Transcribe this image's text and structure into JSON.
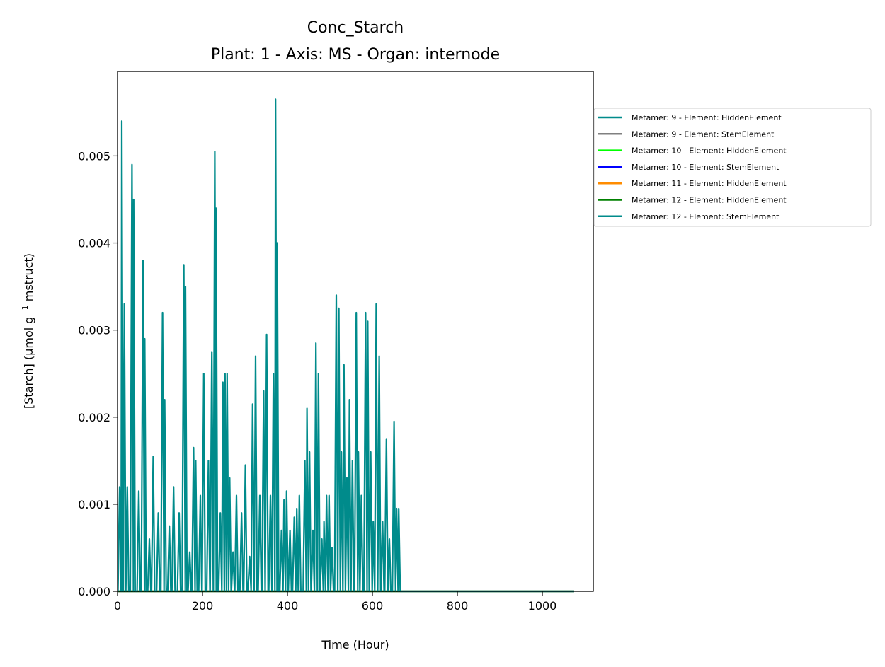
{
  "chart_data": {
    "type": "line",
    "title": "Conc_Starch",
    "subtitle": "Plant: 1 - Axis: MS - Organ: internode",
    "xlabel": "Time (Hour)",
    "ylabel_main": "[Starch] (µmol g",
    "ylabel_exp": "−1",
    "ylabel_tail": " mstruct)",
    "xlim": [
      0,
      1120
    ],
    "ylim": [
      0,
      0.00597
    ],
    "xticks": [
      0,
      200,
      400,
      600,
      800,
      1000
    ],
    "xtick_labels": [
      "0",
      "200",
      "400",
      "600",
      "800",
      "1000"
    ],
    "yticks": [
      0,
      0.001,
      0.002,
      0.003,
      0.004,
      0.005
    ],
    "ytick_labels": [
      "0.000",
      "0.001",
      "0.002",
      "0.003",
      "0.004",
      "0.005"
    ],
    "grid": false,
    "legend_position": "outside-right",
    "series": [
      {
        "name": "Metamer: 9 - Element: HiddenElement",
        "color": "#008B8B",
        "x": [
          0,
          1075
        ],
        "y": [
          0,
          0
        ]
      },
      {
        "name": "Metamer: 9 - Element: StemElement",
        "color": "#808080",
        "x": [
          0,
          1075
        ],
        "y": [
          0,
          0
        ]
      },
      {
        "name": "Metamer: 10 - Element: HiddenElement",
        "color": "#00FF00",
        "x": [
          0,
          1075
        ],
        "y": [
          0,
          0
        ]
      },
      {
        "name": "Metamer: 10 - Element: StemElement",
        "color": "#0000FF",
        "x": [
          0,
          1075
        ],
        "y": [
          0,
          0
        ]
      },
      {
        "name": "Metamer: 11 - Element: HiddenElement",
        "color": "#FF8C00",
        "x": [
          0,
          1075
        ],
        "y": [
          0,
          0
        ]
      },
      {
        "name": "Metamer: 12 - Element: HiddenElement",
        "color": "#008000",
        "x": [
          0,
          1075
        ],
        "y": [
          0,
          0
        ]
      },
      {
        "name": "Metamer: 12 - Element: StemElement",
        "color": "#008B8B",
        "peaks": [
          [
            5,
            0.0012
          ],
          [
            10,
            0.0054
          ],
          [
            16,
            0.0033
          ],
          [
            23,
            0.0012
          ],
          [
            34,
            0.0049
          ],
          [
            38,
            0.0045
          ],
          [
            50,
            0.00115
          ],
          [
            60,
            0.0038
          ],
          [
            64,
            0.0029
          ],
          [
            75,
            0.0006
          ],
          [
            84,
            0.00155
          ],
          [
            96,
            0.0009
          ],
          [
            106,
            0.0032
          ],
          [
            111,
            0.0022
          ],
          [
            122,
            0.00075
          ],
          [
            132,
            0.0012
          ],
          [
            145,
            0.0009
          ],
          [
            156,
            0.00375
          ],
          [
            160,
            0.0035
          ],
          [
            170,
            0.00045
          ],
          [
            179,
            0.00165
          ],
          [
            184,
            0.0015
          ],
          [
            195,
            0.0011
          ],
          [
            203,
            0.0025
          ],
          [
            214,
            0.0015
          ],
          [
            222,
            0.00275
          ],
          [
            229,
            0.00505
          ],
          [
            232,
            0.0044
          ],
          [
            242,
            0.0009
          ],
          [
            248,
            0.0024
          ],
          [
            253,
            0.0025
          ],
          [
            258,
            0.0025
          ],
          [
            264,
            0.0013
          ],
          [
            272,
            0.00045
          ],
          [
            280,
            0.0011
          ],
          [
            292,
            0.0009
          ],
          [
            301,
            0.00145
          ],
          [
            311,
            0.0004
          ],
          [
            318,
            0.00215
          ],
          [
            325,
            0.0027
          ],
          [
            335,
            0.0011
          ],
          [
            344,
            0.0023
          ],
          [
            351,
            0.00295
          ],
          [
            360,
            0.0011
          ],
          [
            367,
            0.0025
          ],
          [
            372,
            0.00565
          ],
          [
            376,
            0.004
          ],
          [
            386,
            0.0007
          ],
          [
            392,
            0.00105
          ],
          [
            398,
            0.00115
          ],
          [
            406,
            0.0007
          ],
          [
            416,
            0.00085
          ],
          [
            422,
            0.00095
          ],
          [
            428,
            0.0011
          ],
          [
            441,
            0.0015
          ],
          [
            446,
            0.0021
          ],
          [
            452,
            0.0016
          ],
          [
            460,
            0.0007
          ],
          [
            467,
            0.00285
          ],
          [
            473,
            0.0025
          ],
          [
            481,
            0.0006
          ],
          [
            486,
            0.0008
          ],
          [
            492,
            0.0011
          ],
          [
            498,
            0.0011
          ],
          [
            505,
            0.0005
          ],
          [
            515,
            0.0034
          ],
          [
            521,
            0.00325
          ],
          [
            527,
            0.0016
          ],
          [
            533,
            0.0026
          ],
          [
            540,
            0.0013
          ],
          [
            546,
            0.0022
          ],
          [
            553,
            0.0015
          ],
          [
            562,
            0.0032
          ],
          [
            567,
            0.0016
          ],
          [
            574,
            0.0011
          ],
          [
            584,
            0.0032
          ],
          [
            589,
            0.0031
          ],
          [
            596,
            0.0016
          ],
          [
            602,
            0.0008
          ],
          [
            609,
            0.0033
          ],
          [
            616,
            0.0027
          ],
          [
            624,
            0.0008
          ],
          [
            633,
            0.00175
          ],
          [
            640,
            0.0006
          ],
          [
            651,
            0.00195
          ],
          [
            657,
            0.00095
          ],
          [
            662,
            0.00095
          ]
        ],
        "end_x": 668
      }
    ]
  }
}
